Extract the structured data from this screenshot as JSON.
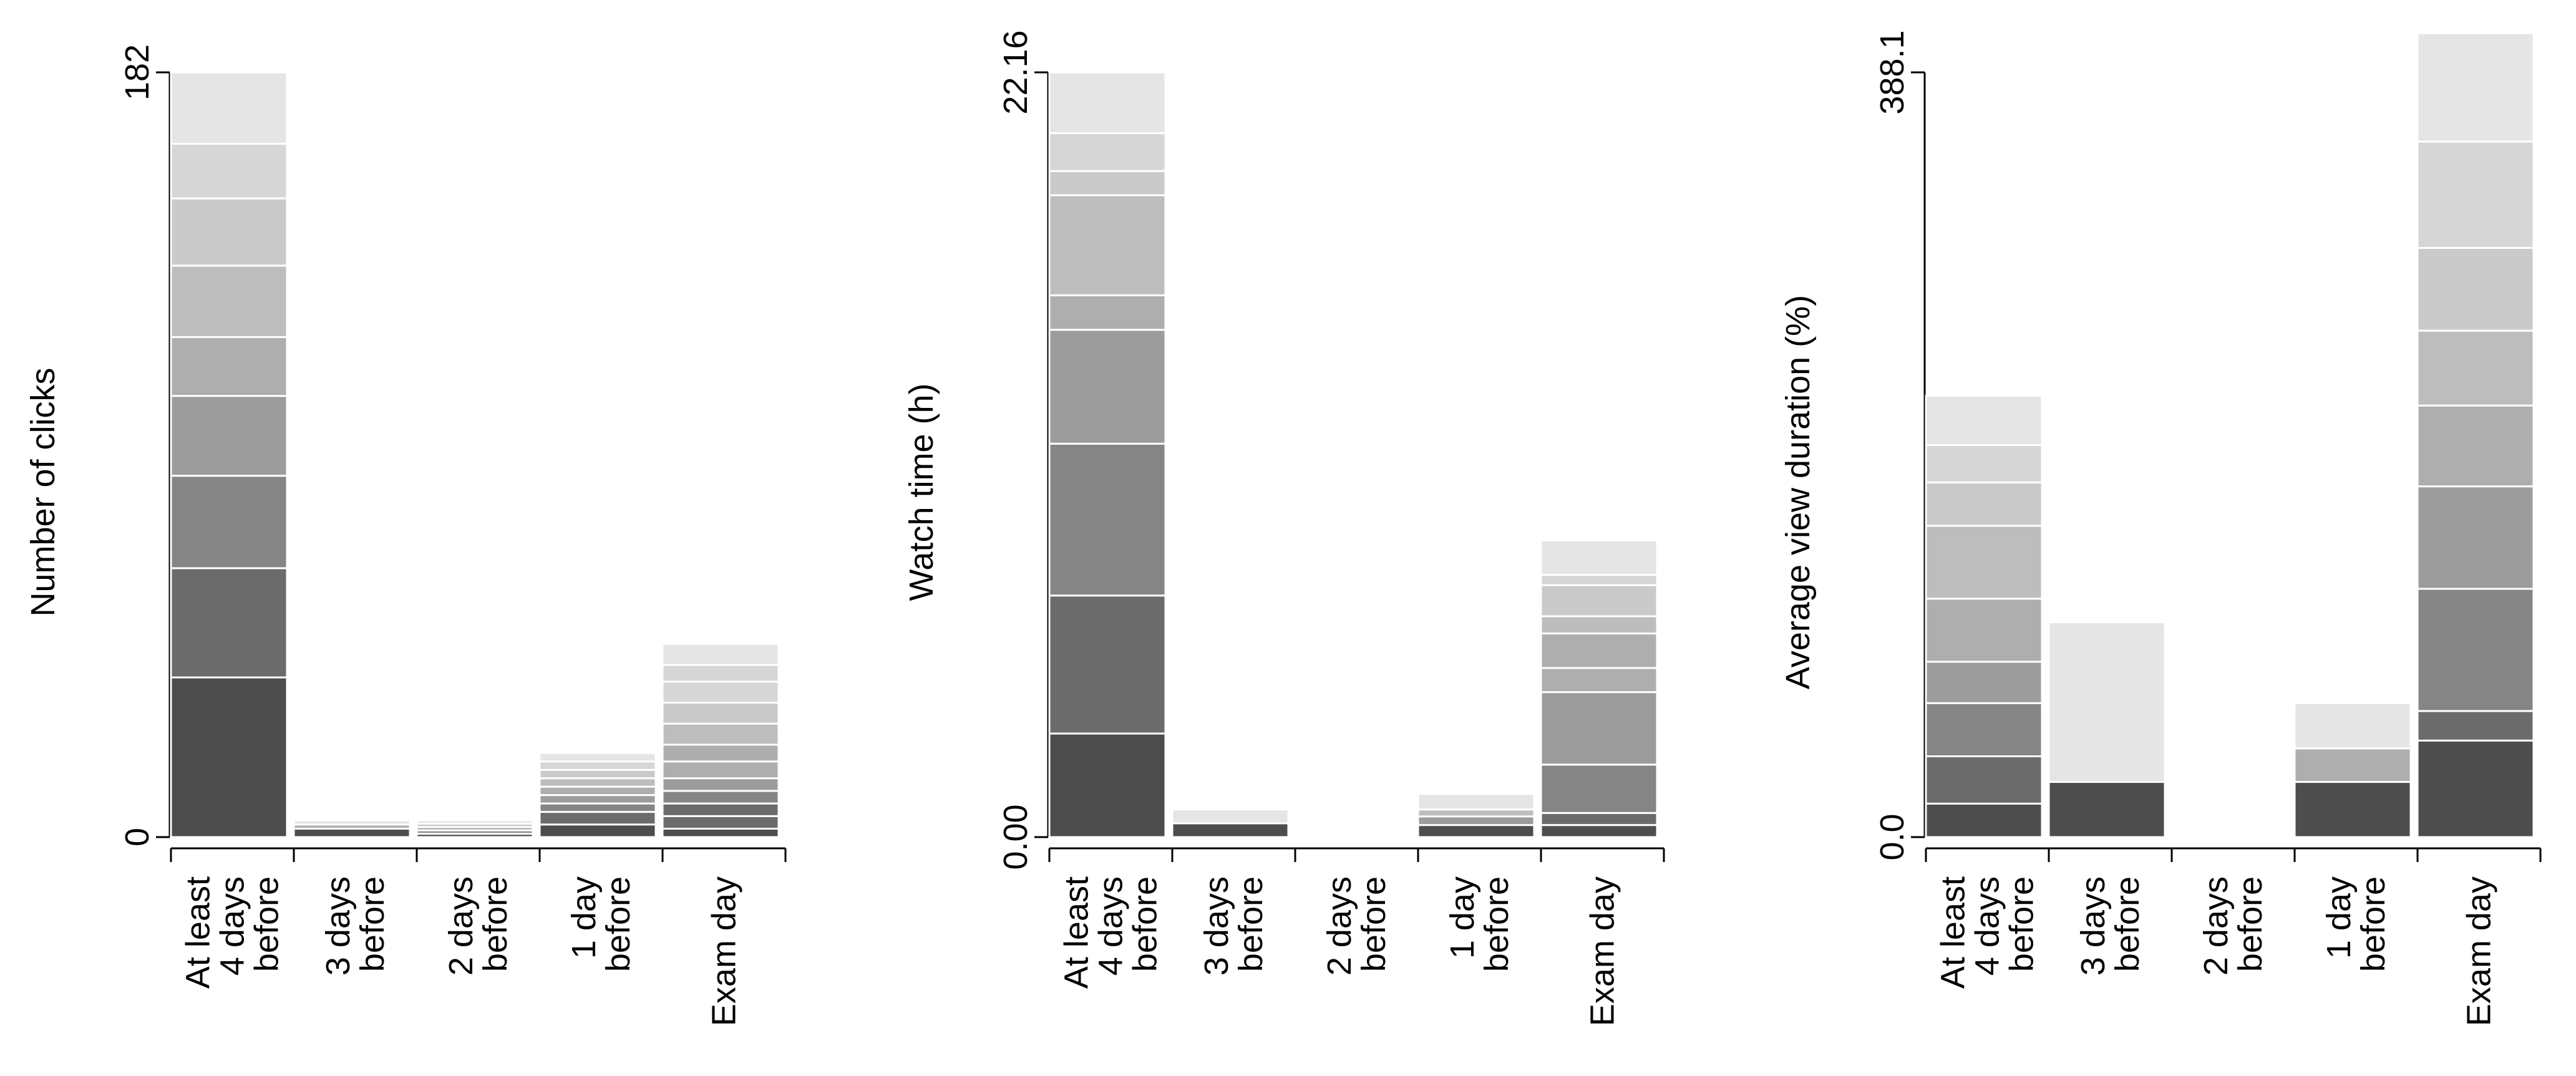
{
  "chart_data": [
    {
      "type": "bar",
      "stacked": true,
      "ylabel": "Number of clicks",
      "ylim": [
        0,
        182
      ],
      "yticks": [
        "0",
        "182"
      ],
      "categories": [
        "At least\n4 days\nbefore",
        "3 days\nbefore",
        "2 days\nbefore",
        "1 day\nbefore",
        "Exam day"
      ],
      "stacks": [
        [
          38,
          26,
          22,
          19,
          14,
          17,
          16,
          13,
          17
        ],
        [
          2,
          1,
          1
        ],
        [
          0.8,
          0.8,
          0.8,
          0.8,
          0.8
        ],
        [
          3,
          3,
          2,
          2,
          2,
          2,
          2,
          2,
          2
        ],
        [
          2,
          3,
          3,
          3,
          3,
          4,
          4,
          5,
          5,
          5,
          4,
          5
        ]
      ]
    },
    {
      "type": "bar",
      "stacked": true,
      "ylabel": "Watch time (h)",
      "ylim": [
        0,
        22.16
      ],
      "yticks": [
        "0.00",
        "22.16"
      ],
      "categories": [
        "At least\n4 days\nbefore",
        "3 days\nbefore",
        "2 days\nbefore",
        "1 day\nbefore",
        "Exam day"
      ],
      "stacks": [
        [
          3.0,
          4.0,
          4.4,
          3.3,
          1.0,
          2.9,
          0.7,
          1.1,
          1.76
        ],
        [
          0.4,
          0.4
        ],
        [],
        [
          0.35,
          0.25,
          0.2,
          0.45
        ],
        [
          0.35,
          0.35,
          1.4,
          2.1,
          0.7,
          1.0,
          0.5,
          0.9,
          0.3,
          1.0
        ]
      ]
    },
    {
      "type": "bar",
      "stacked": true,
      "ylabel": "Average view duration (%)",
      "ylim": [
        0,
        388.1
      ],
      "yticks": [
        "0.0",
        "388.1"
      ],
      "categories": [
        "At least\n4 days\nbefore",
        "3 days\nbefore",
        "2 days\nbefore",
        "1 day\nbefore",
        "Exam day"
      ],
      "stacks": [
        [
          17,
          24,
          27,
          21,
          32,
          37,
          22,
          19,
          25
        ],
        [
          28,
          81
        ],
        [],
        [
          28,
          17,
          23
        ],
        [
          49,
          15,
          62,
          52,
          41,
          38,
          42,
          54,
          55
        ]
      ]
    }
  ]
}
